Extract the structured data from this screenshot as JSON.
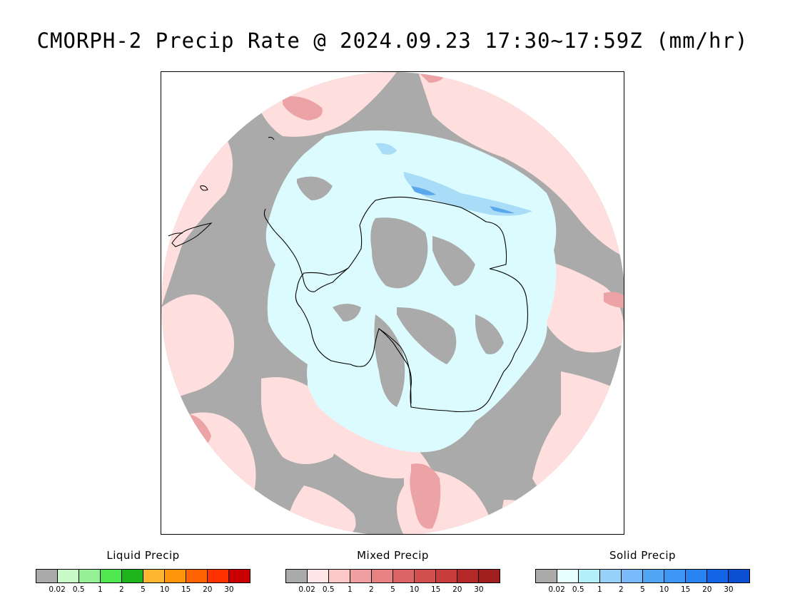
{
  "title": "CMORPH-2 Precip Rate @ 2024.09.23 17:30~17:59Z (mm/hr)",
  "map": {
    "projection": "south polar stereographic",
    "region": "Antarctica and Southern Ocean",
    "colors": {
      "no_precip": "#aaaaaa",
      "mixed_light": "#ffdede",
      "mixed_moderate": "#eba3a6",
      "solid_light": "#dcfbff",
      "solid_moderate": "#a9dcf7",
      "solid_heavy": "#5aa7ec",
      "coastline": "#000000"
    }
  },
  "legends": [
    {
      "name": "liquid",
      "title": "Liquid Precip",
      "colors": [
        "#aaaaaa",
        "#c8fac8",
        "#96f096",
        "#50e650",
        "#1eb41e",
        "#ffb432",
        "#ff960a",
        "#ff6400",
        "#ff3200",
        "#c80000"
      ],
      "ticks": [
        "0.02",
        "0.5",
        "1",
        "2",
        "5",
        "10",
        "15",
        "20",
        "30"
      ]
    },
    {
      "name": "mixed",
      "title": "Mixed Precip",
      "colors": [
        "#aaaaaa",
        "#ffe6e6",
        "#ffc8c8",
        "#f0a0a0",
        "#e68282",
        "#dc6464",
        "#d25050",
        "#c83c3c",
        "#b42828",
        "#a01e1e"
      ],
      "ticks": [
        "0.02",
        "0.5",
        "1",
        "2",
        "5",
        "10",
        "15",
        "20",
        "30"
      ]
    },
    {
      "name": "solid",
      "title": "Solid Precip",
      "colors": [
        "#aaaaaa",
        "#e6ffff",
        "#b4f0fa",
        "#96d2fa",
        "#78b9fa",
        "#50a5f5",
        "#3c96f5",
        "#2882f0",
        "#1464e6",
        "#0a50d2"
      ],
      "ticks": [
        "0.02",
        "0.5",
        "1",
        "2",
        "5",
        "10",
        "15",
        "20",
        "30"
      ]
    }
  ]
}
